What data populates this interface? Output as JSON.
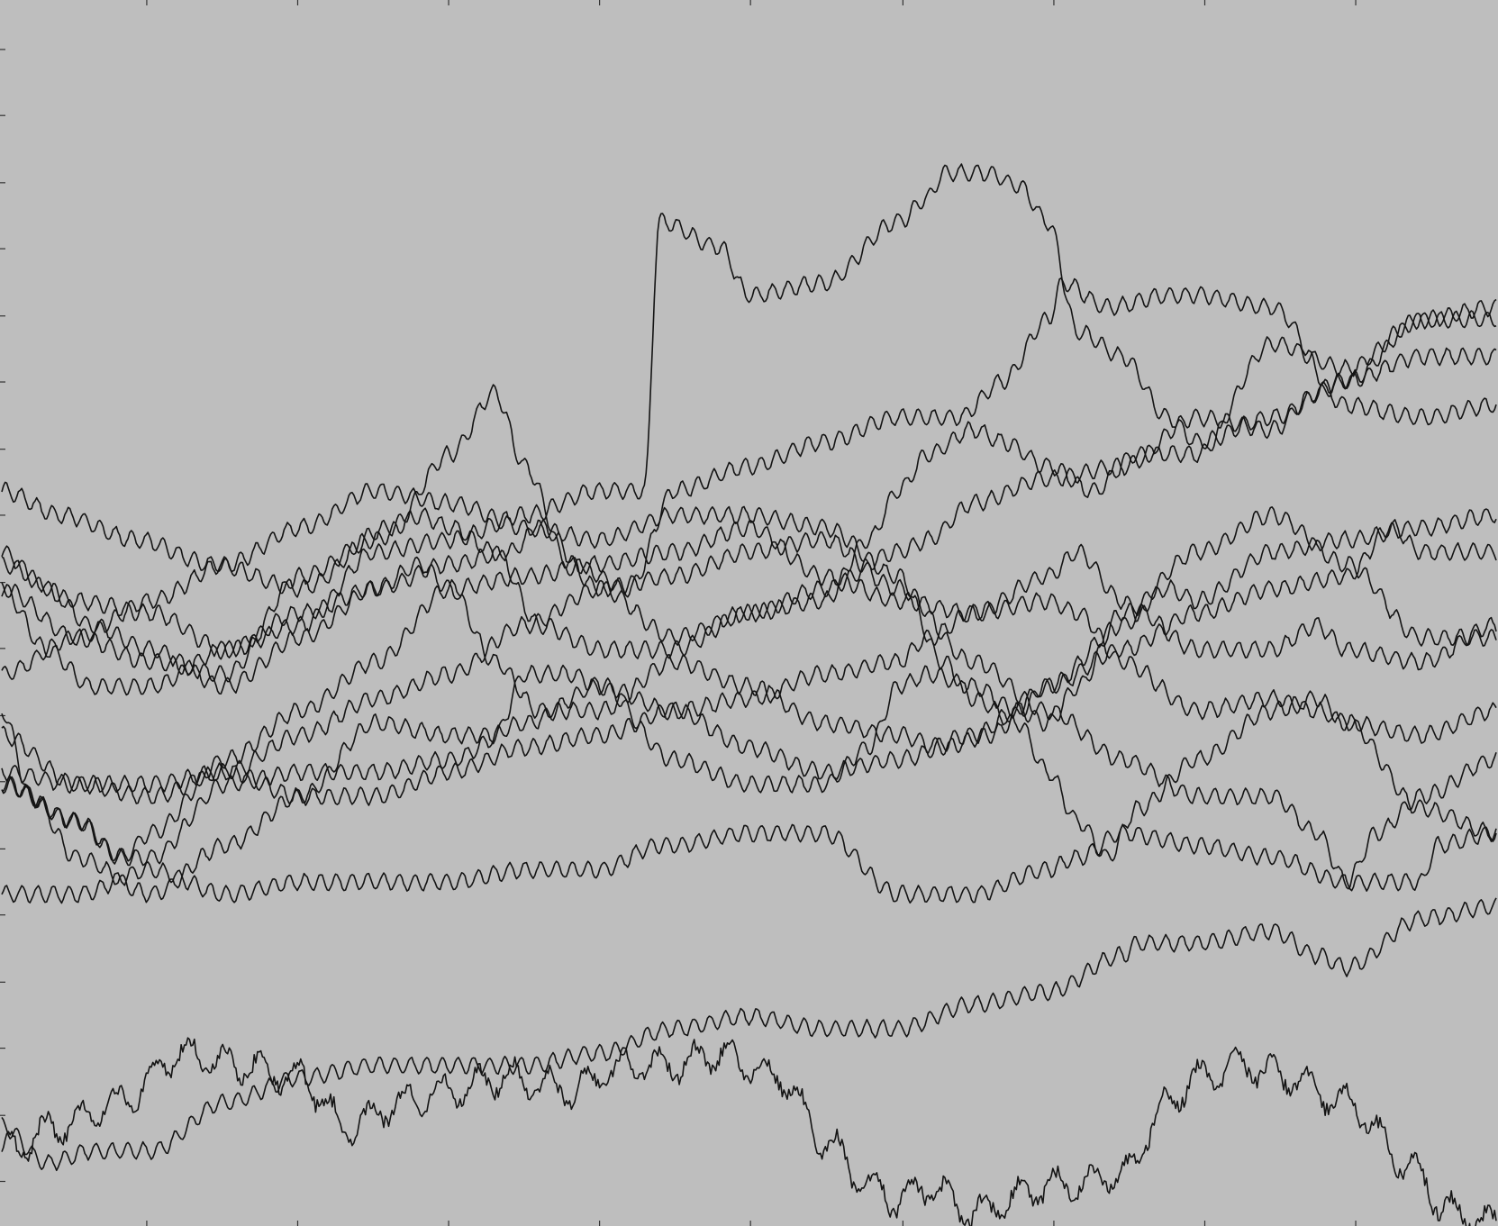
{
  "chart_data": {
    "type": "line",
    "title": "",
    "xlabel": "",
    "ylabel": "",
    "xlim": [
      0,
      1
    ],
    "ylim": [
      0,
      1
    ],
    "grid": false,
    "legend": "none",
    "colors": {
      "background": "#bebebe",
      "trace": "#141414",
      "tick": "#333333"
    },
    "x_ticks": [
      0.097,
      0.198,
      0.299,
      0.4,
      0.501,
      0.603,
      0.704,
      0.805,
      0.906
    ],
    "y_ticks": [
      0.035,
      0.089,
      0.144,
      0.198,
      0.253,
      0.307,
      0.362,
      0.416,
      0.471,
      0.525,
      0.58,
      0.634,
      0.689,
      0.743,
      0.798,
      0.852,
      0.907,
      0.961
    ],
    "series": [
      {
        "x": [
          0,
          0.04,
          0.09,
          0.14,
          0.2,
          0.26,
          0.3,
          0.33,
          0.35,
          0.38,
          0.42,
          0.45,
          0.5,
          0.55,
          0.6,
          0.64,
          0.67,
          0.7,
          0.71,
          0.74,
          0.78,
          0.8,
          0.85,
          0.9,
          0.95,
          1.0
        ],
        "y": [
          0.6,
          0.58,
          0.56,
          0.54,
          0.52,
          0.57,
          0.63,
          0.68,
          0.62,
          0.54,
          0.52,
          0.6,
          0.62,
          0.64,
          0.66,
          0.66,
          0.69,
          0.74,
          0.77,
          0.75,
          0.76,
          0.76,
          0.75,
          0.67,
          0.66,
          0.67
        ]
      },
      {
        "x": [
          0,
          0.05,
          0.1,
          0.15,
          0.2,
          0.25,
          0.3,
          0.35,
          0.4,
          0.43,
          0.44,
          0.48,
          0.5,
          0.55,
          0.6,
          0.62,
          0.63,
          0.66,
          0.68,
          0.7,
          0.72,
          0.75,
          0.78,
          0.8,
          0.85,
          0.9,
          0.95,
          1.0
        ],
        "y": [
          0.54,
          0.51,
          0.5,
          0.47,
          0.49,
          0.55,
          0.56,
          0.58,
          0.6,
          0.6,
          0.82,
          0.8,
          0.76,
          0.77,
          0.82,
          0.84,
          0.86,
          0.86,
          0.85,
          0.82,
          0.73,
          0.71,
          0.66,
          0.64,
          0.66,
          0.69,
          0.74,
          0.75
        ]
      },
      {
        "x": [
          0,
          0.02,
          0.05,
          0.1,
          0.15,
          0.2,
          0.25,
          0.3,
          0.33,
          0.35,
          0.38,
          0.4,
          0.45,
          0.5,
          0.55,
          0.58,
          0.6,
          0.62,
          0.65,
          0.68,
          0.7,
          0.72,
          0.75,
          0.8,
          0.85,
          0.9,
          0.95,
          1.0
        ],
        "y": [
          0.42,
          0.35,
          0.3,
          0.27,
          0.31,
          0.35,
          0.41,
          0.4,
          0.4,
          0.45,
          0.45,
          0.44,
          0.38,
          0.36,
          0.36,
          0.39,
          0.44,
          0.45,
          0.44,
          0.42,
          0.41,
          0.44,
          0.5,
          0.55,
          0.58,
          0.54,
          0.48,
          0.48
        ]
      },
      {
        "x": [
          0,
          0.03,
          0.06,
          0.1,
          0.15,
          0.2,
          0.25,
          0.3,
          0.34,
          0.36,
          0.4,
          0.45,
          0.5,
          0.55,
          0.58,
          0.6,
          0.62,
          0.65,
          0.67,
          0.7,
          0.73,
          0.76,
          0.8,
          0.85,
          0.9,
          0.95,
          1.0
        ],
        "y": [
          0.52,
          0.47,
          0.44,
          0.44,
          0.47,
          0.5,
          0.52,
          0.54,
          0.55,
          0.57,
          0.52,
          0.48,
          0.5,
          0.51,
          0.56,
          0.6,
          0.63,
          0.65,
          0.64,
          0.62,
          0.6,
          0.63,
          0.63,
          0.72,
          0.7,
          0.74,
          0.74
        ]
      },
      {
        "x": [
          0,
          0.05,
          0.1,
          0.15,
          0.2,
          0.25,
          0.3,
          0.35,
          0.4,
          0.45,
          0.5,
          0.55,
          0.6,
          0.63,
          0.65,
          0.68,
          0.7,
          0.72,
          0.74,
          0.76,
          0.8,
          0.85,
          0.88,
          0.9,
          0.95,
          1.0
        ],
        "y": [
          0.45,
          0.48,
          0.51,
          0.54,
          0.57,
          0.6,
          0.59,
          0.57,
          0.56,
          0.58,
          0.58,
          0.57,
          0.53,
          0.46,
          0.43,
          0.41,
          0.37,
          0.33,
          0.3,
          0.34,
          0.38,
          0.42,
          0.43,
          0.41,
          0.34,
          0.32
        ]
      },
      {
        "x": [
          0,
          0.05,
          0.1,
          0.15,
          0.2,
          0.25,
          0.28,
          0.3,
          0.33,
          0.36,
          0.4,
          0.45,
          0.5,
          0.55,
          0.6,
          0.62,
          0.65,
          0.7,
          0.75,
          0.8,
          0.85,
          0.88,
          0.9,
          0.95,
          1.0
        ],
        "y": [
          0.52,
          0.48,
          0.46,
          0.45,
          0.53,
          0.56,
          0.58,
          0.57,
          0.55,
          0.49,
          0.47,
          0.47,
          0.5,
          0.52,
          0.55,
          0.56,
          0.59,
          0.61,
          0.62,
          0.66,
          0.65,
          0.68,
          0.69,
          0.71,
          0.71
        ]
      },
      {
        "x": [
          0,
          0.05,
          0.08,
          0.1,
          0.15,
          0.2,
          0.25,
          0.3,
          0.35,
          0.4,
          0.45,
          0.5,
          0.55,
          0.6,
          0.65,
          0.7,
          0.72,
          0.75,
          0.76,
          0.8,
          0.85,
          0.88,
          0.9,
          0.95,
          1.0
        ],
        "y": [
          0.36,
          0.33,
          0.3,
          0.32,
          0.38,
          0.42,
          0.46,
          0.52,
          0.53,
          0.54,
          0.55,
          0.57,
          0.53,
          0.51,
          0.5,
          0.53,
          0.55,
          0.51,
          0.5,
          0.47,
          0.47,
          0.49,
          0.47,
          0.46,
          0.49
        ]
      },
      {
        "x": [
          0,
          0.03,
          0.06,
          0.1,
          0.15,
          0.2,
          0.25,
          0.28,
          0.3,
          0.33,
          0.36,
          0.4,
          0.45,
          0.5,
          0.55,
          0.6,
          0.63,
          0.66,
          0.7,
          0.75,
          0.78,
          0.8,
          0.85,
          0.9,
          0.95,
          1.0
        ],
        "y": [
          0.55,
          0.52,
          0.49,
          0.47,
          0.44,
          0.48,
          0.52,
          0.54,
          0.52,
          0.46,
          0.42,
          0.42,
          0.46,
          0.44,
          0.41,
          0.4,
          0.39,
          0.4,
          0.44,
          0.49,
          0.52,
          0.51,
          0.55,
          0.56,
          0.57,
          0.58
        ]
      },
      {
        "x": [
          0,
          0.05,
          0.1,
          0.15,
          0.2,
          0.25,
          0.3,
          0.35,
          0.4,
          0.45,
          0.5,
          0.55,
          0.6,
          0.65,
          0.7,
          0.75,
          0.8,
          0.85,
          0.88,
          0.9,
          0.92,
          0.95,
          1.0
        ],
        "y": [
          0.4,
          0.36,
          0.35,
          0.37,
          0.4,
          0.43,
          0.45,
          0.49,
          0.52,
          0.53,
          0.55,
          0.56,
          0.52,
          0.46,
          0.42,
          0.38,
          0.35,
          0.35,
          0.32,
          0.28,
          0.32,
          0.35,
          0.38
        ]
      },
      {
        "x": [
          0,
          0.05,
          0.1,
          0.15,
          0.2,
          0.25,
          0.3,
          0.35,
          0.4,
          0.45,
          0.5,
          0.55,
          0.6,
          0.62,
          0.65,
          0.7,
          0.72,
          0.75,
          0.8,
          0.85,
          0.88,
          0.9,
          0.95,
          1.0
        ],
        "y": [
          0.37,
          0.36,
          0.36,
          0.37,
          0.35,
          0.35,
          0.37,
          0.39,
          0.4,
          0.42,
          0.43,
          0.45,
          0.46,
          0.48,
          0.5,
          0.51,
          0.5,
          0.46,
          0.42,
          0.43,
          0.42,
          0.41,
          0.4,
          0.42
        ]
      },
      {
        "x": [
          0,
          0.05,
          0.08,
          0.1,
          0.15,
          0.2,
          0.25,
          0.3,
          0.35,
          0.4,
          0.45,
          0.5,
          0.55,
          0.6,
          0.65,
          0.68,
          0.7,
          0.75,
          0.8,
          0.85,
          0.9,
          0.93,
          0.95,
          1.0
        ],
        "y": [
          0.36,
          0.33,
          0.3,
          0.3,
          0.36,
          0.37,
          0.37,
          0.38,
          0.41,
          0.44,
          0.42,
          0.39,
          0.37,
          0.38,
          0.4,
          0.42,
          0.44,
          0.47,
          0.5,
          0.52,
          0.53,
          0.57,
          0.55,
          0.55
        ]
      },
      {
        "x": [
          0,
          0.05,
          0.1,
          0.15,
          0.2,
          0.25,
          0.3,
          0.35,
          0.4,
          0.44,
          0.45,
          0.5,
          0.55,
          0.6,
          0.65,
          0.7,
          0.72,
          0.75,
          0.8,
          0.85,
          0.9,
          0.95,
          0.96,
          1.0
        ],
        "y": [
          0.27,
          0.27,
          0.29,
          0.27,
          0.28,
          0.28,
          0.28,
          0.29,
          0.29,
          0.31,
          0.31,
          0.32,
          0.32,
          0.27,
          0.27,
          0.29,
          0.3,
          0.32,
          0.31,
          0.3,
          0.28,
          0.28,
          0.31,
          0.32
        ]
      },
      {
        "x": [
          0,
          0.03,
          0.06,
          0.1,
          0.15,
          0.2,
          0.25,
          0.3,
          0.35,
          0.4,
          0.45,
          0.5,
          0.55,
          0.6,
          0.65,
          0.7,
          0.75,
          0.76,
          0.8,
          0.85,
          0.88,
          0.9,
          0.95,
          1.0
        ],
        "y": [
          0.08,
          0.05,
          0.06,
          0.06,
          0.1,
          0.12,
          0.13,
          0.13,
          0.13,
          0.14,
          0.16,
          0.17,
          0.16,
          0.16,
          0.18,
          0.19,
          0.22,
          0.23,
          0.23,
          0.24,
          0.22,
          0.21,
          0.25,
          0.26
        ]
      },
      {
        "x": [
          0,
          0.04,
          0.08,
          0.12,
          0.16,
          0.2,
          0.23,
          0.27,
          0.3,
          0.34,
          0.38,
          0.42,
          0.45,
          0.48,
          0.5,
          0.52,
          0.55,
          0.58,
          0.6,
          0.62,
          0.65,
          0.7,
          0.75,
          0.78,
          0.8,
          0.83,
          0.86,
          0.9,
          0.94,
          0.97,
          1.0
        ],
        "y": [
          0.06,
          0.08,
          0.1,
          0.14,
          0.13,
          0.12,
          0.08,
          0.1,
          0.11,
          0.12,
          0.11,
          0.13,
          0.13,
          0.14,
          0.13,
          0.12,
          0.07,
          0.03,
          0.02,
          0.03,
          0.01,
          0.03,
          0.04,
          0.1,
          0.12,
          0.13,
          0.12,
          0.1,
          0.05,
          0.01,
          0.0
        ]
      }
    ]
  }
}
